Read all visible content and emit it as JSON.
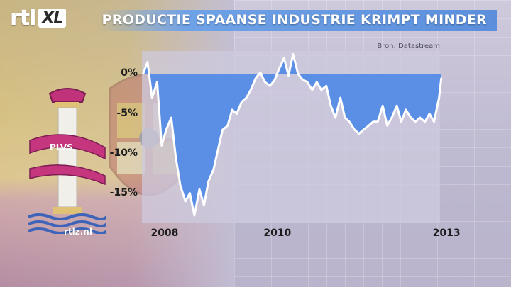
{
  "header": {
    "logo_rtl": "rtl",
    "logo_xl": "XL",
    "title": "PRODUCTIE SPAANSE INDUSTRIE KRIMPT MINDER"
  },
  "source": "Bron: Datastream",
  "footer_url": "rtlz.nl",
  "emblem_text": "PLVS",
  "colors": {
    "area_fill": "#5b8fe6",
    "line": "#ffffff",
    "title_bar": "#5b8fdc",
    "tick_text": "#1c1c1c"
  },
  "chart_data": {
    "type": "area",
    "title": "PRODUCTIE SPAANSE INDUSTRIE KRIMPT MINDER",
    "xlabel": "",
    "ylabel": "",
    "x_ticks": [
      "2008",
      "2010",
      "2013"
    ],
    "y_ticks": [
      "0%",
      "-5%",
      "-10%",
      "-15%"
    ],
    "y_tick_values": [
      0,
      -5,
      -10,
      -15
    ],
    "ylim": [
      -18.5,
      2
    ],
    "xlim": [
      2007.9,
      2013.25
    ],
    "grid": false,
    "series": [
      {
        "x": [
          2007.92,
          2008.0,
          2008.08,
          2008.17,
          2008.25,
          2008.33,
          2008.42,
          2008.5,
          2008.58,
          2008.67,
          2008.75,
          2008.83,
          2008.92,
          2009.0,
          2009.08,
          2009.17,
          2009.25,
          2009.33,
          2009.42,
          2009.5,
          2009.58,
          2009.67,
          2009.75,
          2009.83,
          2009.92,
          2010.0,
          2010.08,
          2010.17,
          2010.25,
          2010.33,
          2010.42,
          2010.5,
          2010.58,
          2010.67,
          2010.75,
          2010.83,
          2010.92,
          2011.0,
          2011.08,
          2011.17,
          2011.25,
          2011.33,
          2011.42,
          2011.5,
          2011.58,
          2011.67,
          2011.75,
          2011.83,
          2011.92,
          2012.0,
          2012.08,
          2012.17,
          2012.25,
          2012.33,
          2012.42,
          2012.5,
          2012.58,
          2012.67,
          2012.75,
          2012.83,
          2012.92,
          2013.0,
          2013.08,
          2013.17,
          2013.21
        ],
        "values": [
          0,
          1.5,
          -3.0,
          -1.0,
          -9.0,
          -7.0,
          -5.5,
          -10.5,
          -14.0,
          -16.0,
          -15.0,
          -17.8,
          -14.5,
          -16.5,
          -13.5,
          -12.0,
          -9.5,
          -7.0,
          -6.5,
          -4.5,
          -5.0,
          -3.5,
          -3.0,
          -2.0,
          -0.5,
          0.2,
          -1.0,
          -1.5,
          -0.8,
          0.6,
          2.0,
          -0.2,
          2.5,
          0.0,
          -0.7,
          -1.0,
          -2.0,
          -1.0,
          -2.0,
          -1.5,
          -4.0,
          -5.5,
          -3.0,
          -5.5,
          -6.0,
          -7.0,
          -7.5,
          -7.0,
          -6.5,
          -6.0,
          -6.0,
          -4.0,
          -6.5,
          -5.5,
          -4.0,
          -6.0,
          -4.5,
          -5.5,
          -6.0,
          -5.5,
          -6.0,
          -5.0,
          -6.0,
          -3.0,
          -0.5
        ]
      }
    ]
  }
}
